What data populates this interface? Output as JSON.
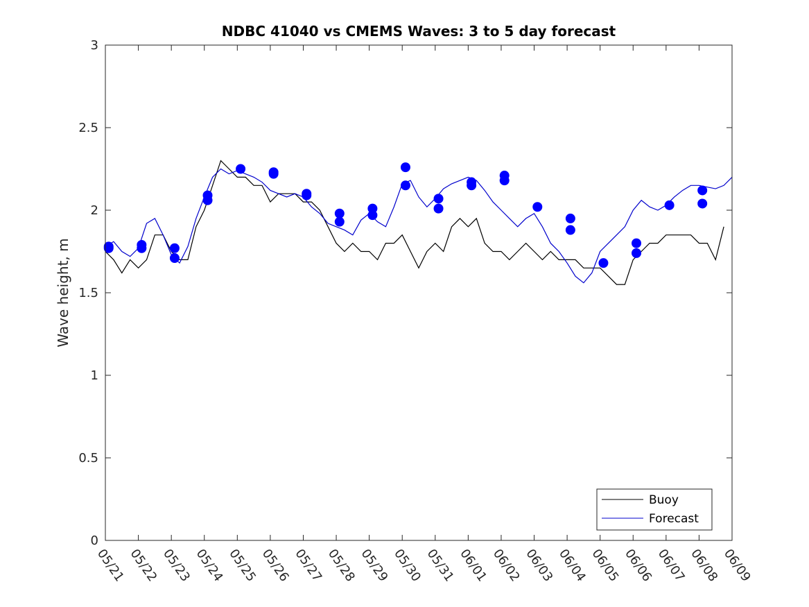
{
  "chart_data": {
    "type": "line",
    "title": "NDBC 41040 vs CMEMS Waves: 3 to 5 day forecast",
    "xlabel": "",
    "ylabel": "Wave height, m",
    "ylim": [
      0,
      3
    ],
    "yticks": [
      "0",
      "0.5",
      "1",
      "1.5",
      "2",
      "2.5",
      "3"
    ],
    "xlim": [
      "05/21",
      "06/09"
    ],
    "categories": [
      "05/21",
      "05/22",
      "05/23",
      "05/24",
      "05/25",
      "05/26",
      "05/27",
      "05/28",
      "05/29",
      "05/30",
      "05/31",
      "06/01",
      "06/02",
      "06/03",
      "06/04",
      "06/05",
      "06/06",
      "06/07",
      "06/08",
      "06/09"
    ],
    "legend_position": "bottom-right",
    "colors": {
      "buoy": "#000000",
      "forecast": "#0000cc",
      "markers": "#0000ff"
    },
    "series": [
      {
        "name": "Buoy",
        "x": [
          0,
          0.25,
          0.5,
          0.75,
          1,
          1.25,
          1.5,
          1.75,
          2,
          2.25,
          2.5,
          2.75,
          3,
          3.25,
          3.5,
          3.75,
          4,
          4.25,
          4.5,
          4.75,
          5,
          5.25,
          5.5,
          5.75,
          6,
          6.25,
          6.5,
          6.75,
          7,
          7.25,
          7.5,
          7.75,
          8,
          8.25,
          8.5,
          8.75,
          9,
          9.25,
          9.5,
          9.75,
          10,
          10.25,
          10.5,
          10.75,
          11,
          11.25,
          11.5,
          11.75,
          12,
          12.25,
          12.5,
          12.75,
          13,
          13.25,
          13.5,
          13.75,
          14,
          14.25,
          14.5,
          14.75,
          15,
          15.25,
          15.5,
          15.75,
          16,
          16.25,
          16.5,
          16.75,
          17,
          17.25,
          17.5,
          17.75,
          18,
          18.25,
          18.5,
          18.75
        ],
        "values": [
          1.75,
          1.7,
          1.62,
          1.7,
          1.65,
          1.7,
          1.85,
          1.85,
          1.75,
          1.7,
          1.7,
          1.9,
          2.0,
          2.15,
          2.3,
          2.25,
          2.2,
          2.2,
          2.15,
          2.15,
          2.05,
          2.1,
          2.1,
          2.1,
          2.05,
          2.05,
          2.0,
          1.9,
          1.8,
          1.75,
          1.8,
          1.75,
          1.75,
          1.7,
          1.8,
          1.8,
          1.85,
          1.75,
          1.65,
          1.75,
          1.8,
          1.75,
          1.9,
          1.95,
          1.9,
          1.95,
          1.8,
          1.75,
          1.75,
          1.7,
          1.75,
          1.8,
          1.75,
          1.7,
          1.75,
          1.7,
          1.7,
          1.7,
          1.65,
          1.65,
          1.65,
          1.6,
          1.55,
          1.55,
          1.7,
          1.75,
          1.8,
          1.8,
          1.85,
          1.85,
          1.85,
          1.85,
          1.8,
          1.8,
          1.7,
          1.9
        ]
      },
      {
        "name": "Forecast",
        "x": [
          0,
          0.25,
          0.5,
          0.75,
          1,
          1.25,
          1.5,
          1.75,
          2,
          2.25,
          2.5,
          2.75,
          3,
          3.25,
          3.5,
          3.75,
          4,
          4.25,
          4.5,
          4.75,
          5,
          5.25,
          5.5,
          5.75,
          6,
          6.25,
          6.5,
          6.75,
          7,
          7.25,
          7.5,
          7.75,
          8,
          8.25,
          8.5,
          8.75,
          9,
          9.25,
          9.5,
          9.75,
          10,
          10.25,
          10.5,
          10.75,
          11,
          11.25,
          11.5,
          11.75,
          12,
          12.25,
          12.5,
          12.75,
          13,
          13.25,
          13.5,
          13.75,
          14,
          14.25,
          14.5,
          14.75,
          15,
          15.25,
          15.5,
          15.75,
          16,
          16.25,
          16.5,
          16.75,
          17,
          17.25,
          17.5,
          17.75,
          18,
          18.25,
          18.5,
          18.75,
          19
        ],
        "values": [
          1.78,
          1.81,
          1.75,
          1.72,
          1.77,
          1.92,
          1.95,
          1.85,
          1.73,
          1.68,
          1.78,
          1.95,
          2.08,
          2.2,
          2.25,
          2.22,
          2.24,
          2.22,
          2.2,
          2.17,
          2.12,
          2.1,
          2.08,
          2.1,
          2.08,
          2.02,
          1.98,
          1.92,
          1.9,
          1.88,
          1.85,
          1.94,
          1.98,
          1.93,
          1.9,
          2.02,
          2.16,
          2.18,
          2.08,
          2.02,
          2.07,
          2.13,
          2.16,
          2.18,
          2.2,
          2.18,
          2.12,
          2.05,
          2.0,
          1.95,
          1.9,
          1.95,
          1.98,
          1.9,
          1.8,
          1.75,
          1.68,
          1.6,
          1.56,
          1.62,
          1.75,
          1.8,
          1.85,
          1.9,
          2.0,
          2.06,
          2.02,
          2.0,
          2.03,
          2.08,
          2.12,
          2.15,
          2.15,
          2.14,
          2.13,
          2.15,
          2.2
        ]
      }
    ],
    "markers": {
      "x": [
        0.1,
        0.1,
        1.1,
        1.1,
        2.1,
        2.1,
        3.1,
        3.1,
        4.1,
        5.1,
        5.1,
        6.1,
        6.1,
        7.1,
        7.1,
        8.1,
        8.1,
        9.1,
        9.1,
        10.1,
        10.1,
        11.1,
        11.1,
        12.1,
        12.1,
        13.1,
        14.1,
        14.1,
        15.1,
        16.1,
        16.1,
        17.1,
        18.1,
        18.1
      ],
      "values": [
        1.78,
        1.77,
        1.79,
        1.77,
        1.77,
        1.71,
        2.09,
        2.06,
        2.25,
        2.23,
        2.22,
        2.1,
        2.09,
        1.98,
        1.93,
        2.01,
        1.97,
        2.26,
        2.15,
        2.07,
        2.01,
        2.17,
        2.15,
        2.21,
        2.18,
        2.02,
        1.95,
        1.88,
        1.68,
        1.8,
        1.74,
        2.03,
        2.12,
        2.04
      ]
    }
  }
}
